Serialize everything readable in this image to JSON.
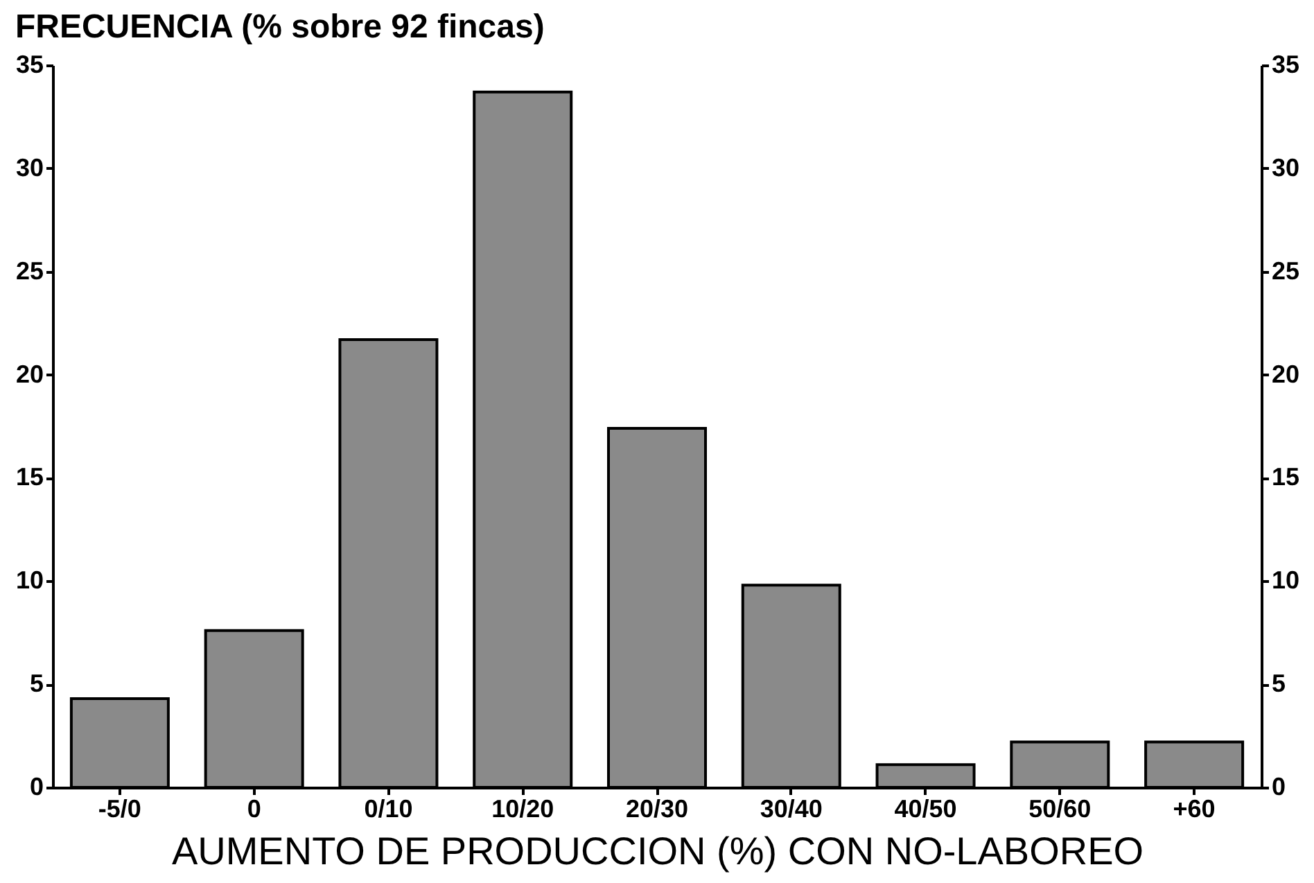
{
  "chart_data": {
    "type": "bar",
    "title": "FRECUENCIA (% sobre 92 fincas)",
    "xlabel": "AUMENTO DE PRODUCCION (%) CON NO-LABOREO",
    "categories": [
      "-5/0",
      "0",
      "0/10",
      "10/20",
      "20/30",
      "30/40",
      "40/50",
      "50/60",
      "+60"
    ],
    "values": [
      4.3,
      7.6,
      21.7,
      33.7,
      17.4,
      9.8,
      1.1,
      2.2,
      2.2
    ],
    "color": "#8a8a8a",
    "ylim": [
      0,
      35
    ],
    "yticks": [
      0,
      5,
      10,
      15,
      20,
      25,
      30,
      35
    ],
    "y2lim": [
      0,
      35
    ],
    "y2ticks": [
      0,
      5,
      10,
      15,
      20,
      25,
      30,
      35
    ],
    "grid": false
  }
}
